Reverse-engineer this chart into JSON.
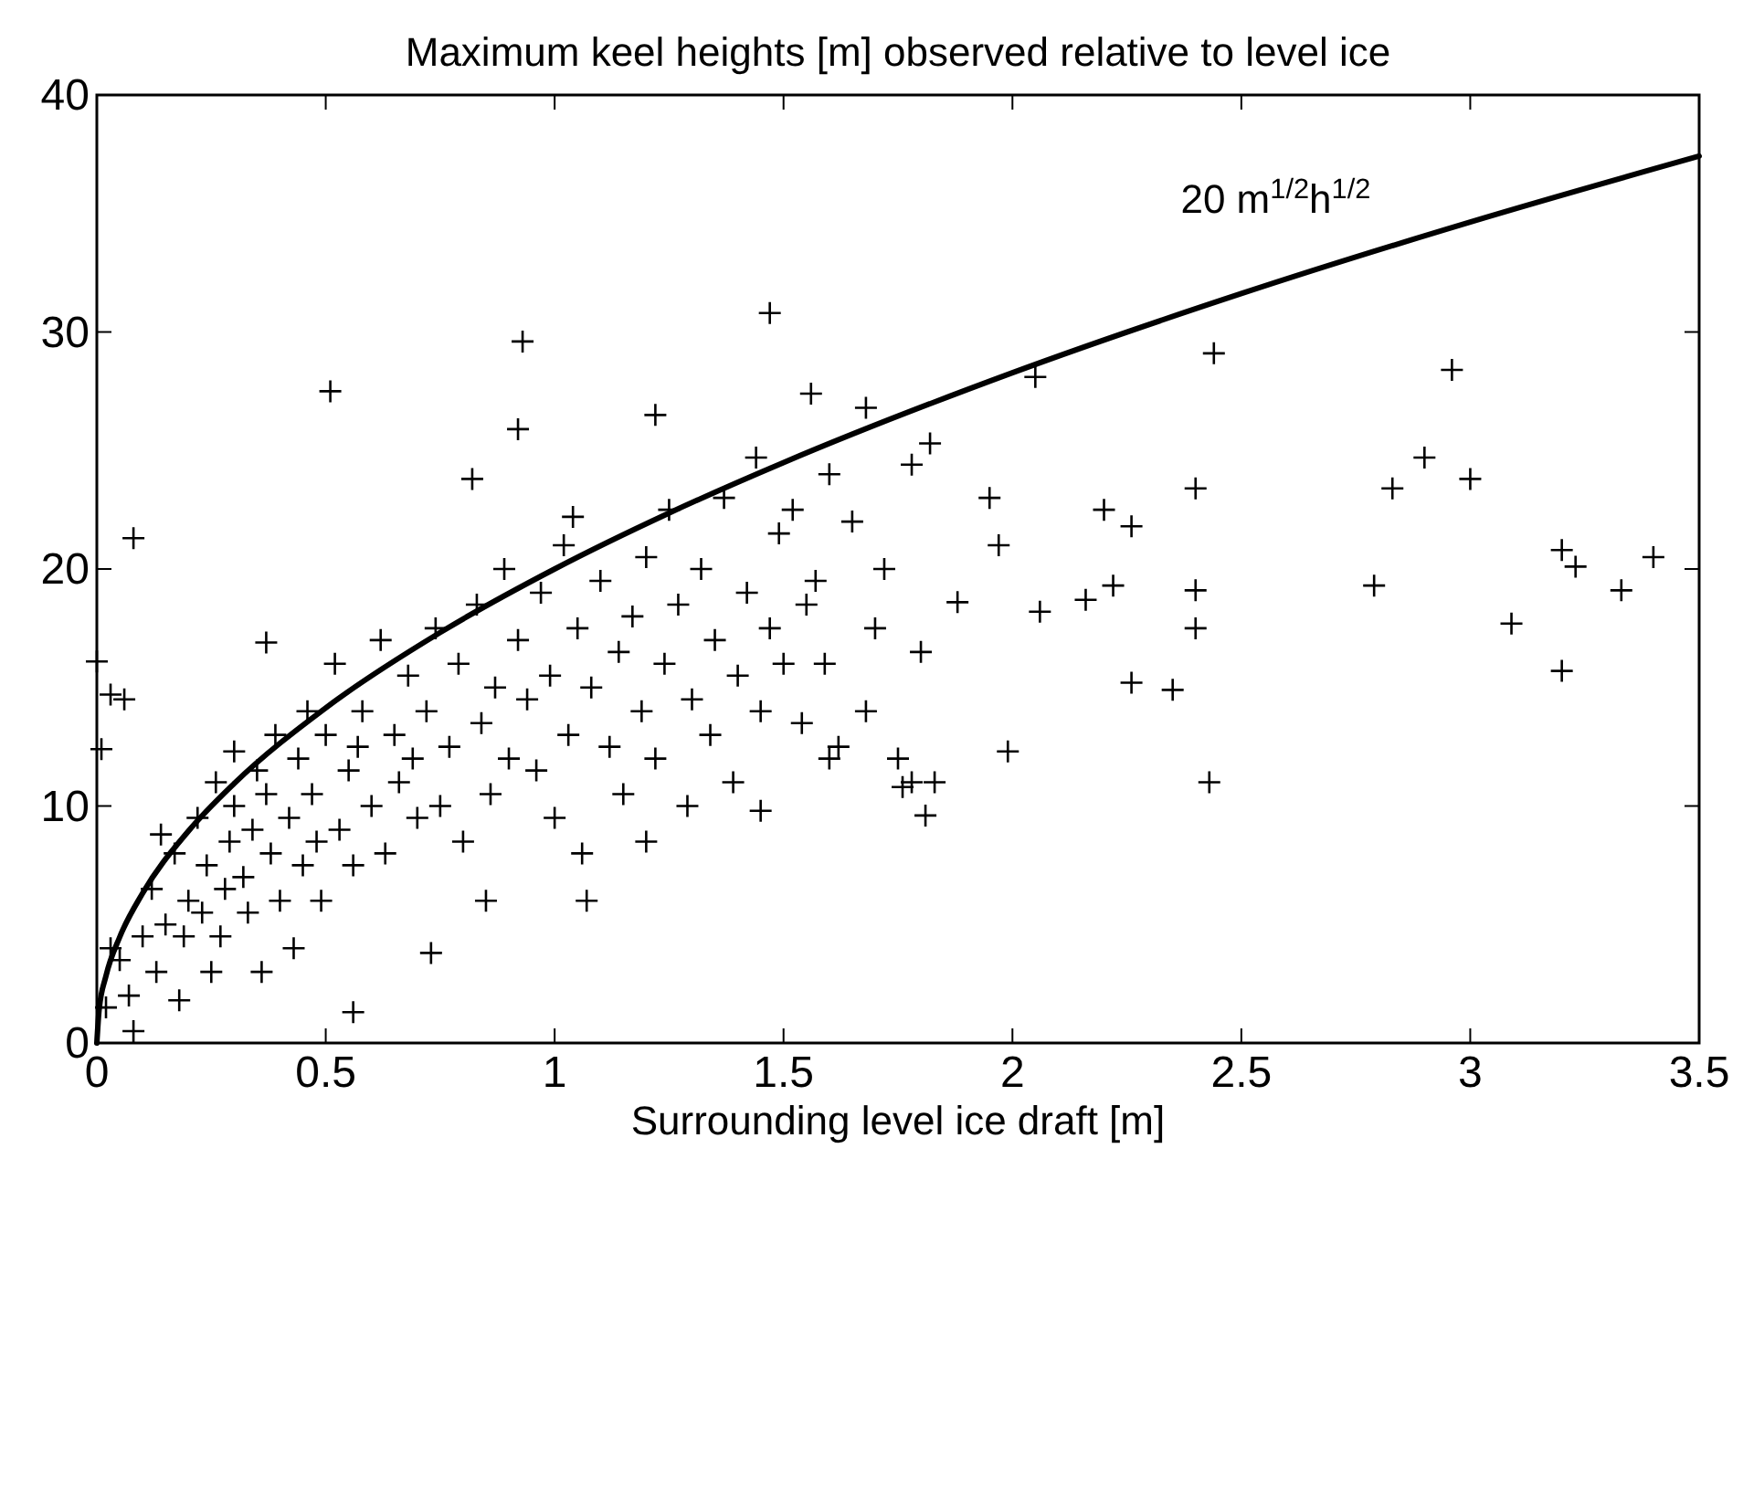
{
  "chart_data": {
    "type": "scatter",
    "title": "Maximum keel heights [m] observed relative to level ice",
    "xlabel": "Surrounding level ice draft [m]",
    "xlim": [
      0,
      3.5
    ],
    "ylim": [
      0,
      40
    ],
    "xticks": [
      0,
      0.5,
      1,
      1.5,
      2,
      2.5,
      3,
      3.5
    ],
    "yticks": [
      0,
      10,
      20,
      30,
      40
    ],
    "grid": false,
    "marker": "cross",
    "series": [
      {
        "color": "#000000",
        "x": [
          2.05,
          2.44,
          2.96,
          2.9,
          3.0,
          2.83,
          2.4,
          2.2,
          2.26,
          1.97,
          1.95,
          2.22,
          2.4,
          2.4,
          2.79,
          2.06,
          2.16,
          3.09,
          3.2,
          3.23,
          3.4,
          3.33,
          3.2,
          2.26,
          2.35,
          2.43,
          1.99,
          1.88,
          1.82,
          1.47,
          1.56,
          1.68,
          0.93,
          0.92,
          0.51,
          1.22,
          0.08,
          0.0,
          0.01,
          0.03,
          0.06,
          0.37,
          0.56,
          0.73,
          1.07,
          0.85,
          1.81,
          1.83,
          1.78,
          1.6,
          1.45,
          1.2,
          0.02,
          0.05,
          0.07,
          0.08,
          0.1,
          0.03,
          0.12,
          0.13,
          0.15,
          0.17,
          0.18,
          0.19,
          0.14,
          0.2,
          0.22,
          0.23,
          0.24,
          0.25,
          0.26,
          0.28,
          0.29,
          0.27,
          0.3,
          0.3,
          0.32,
          0.33,
          0.34,
          0.35,
          0.36,
          0.38,
          0.39,
          0.4,
          0.37,
          0.42,
          0.43,
          0.44,
          0.45,
          0.46,
          0.47,
          0.49,
          0.5,
          0.48,
          0.52,
          0.53,
          0.55,
          0.56,
          0.58,
          0.6,
          0.57,
          0.62,
          0.63,
          0.65,
          0.66,
          0.68,
          0.7,
          0.69,
          0.72,
          0.74,
          0.75,
          0.77,
          0.79,
          0.8,
          0.82,
          0.83,
          0.84,
          0.86,
          0.87,
          0.89,
          0.9,
          0.92,
          0.94,
          0.96,
          0.97,
          0.99,
          1.0,
          1.02,
          1.03,
          1.05,
          1.06,
          1.08,
          1.1,
          1.04,
          1.12,
          1.14,
          1.15,
          1.17,
          1.19,
          1.2,
          1.22,
          1.24,
          1.25,
          1.27,
          1.29,
          1.3,
          1.32,
          1.34,
          1.35,
          1.37,
          1.39,
          1.4,
          1.42,
          1.44,
          1.45,
          1.47,
          1.49,
          1.5,
          1.52,
          1.54,
          1.55,
          1.57,
          1.59,
          1.6,
          1.62,
          1.65,
          1.68,
          1.7,
          1.72,
          1.75,
          1.78,
          1.8,
          1.76
        ],
        "values": [
          28.1,
          29.1,
          28.4,
          24.7,
          23.8,
          23.4,
          23.4,
          22.5,
          21.8,
          21.0,
          23.0,
          19.3,
          19.1,
          17.5,
          19.3,
          18.2,
          18.7,
          17.7,
          20.8,
          20.1,
          20.5,
          19.1,
          15.7,
          15.2,
          14.9,
          11.0,
          12.3,
          18.6,
          25.3,
          30.8,
          27.4,
          26.8,
          29.6,
          25.9,
          27.5,
          26.5,
          21.3,
          16.1,
          12.4,
          14.7,
          14.5,
          16.9,
          1.3,
          3.8,
          6.0,
          6.0,
          9.6,
          11.0,
          11.0,
          12.0,
          9.8,
          8.5,
          1.5,
          3.5,
          2.0,
          0.5,
          4.5,
          4.0,
          6.5,
          3.0,
          5.0,
          8.0,
          1.8,
          4.5,
          8.8,
          6.0,
          9.5,
          5.5,
          7.5,
          3.0,
          11.0,
          6.5,
          8.5,
          4.5,
          10.0,
          12.3,
          7.0,
          5.5,
          9.0,
          11.5,
          3.0,
          8.0,
          13.0,
          6.0,
          10.5,
          9.5,
          4.0,
          12.0,
          7.5,
          14.0,
          10.5,
          6.0,
          13.0,
          8.5,
          16.0,
          9.0,
          11.5,
          7.5,
          14.0,
          10.0,
          12.5,
          17.0,
          8.0,
          13.0,
          11.0,
          15.5,
          9.5,
          12.0,
          14.0,
          17.5,
          10.0,
          12.5,
          16.0,
          8.5,
          23.8,
          18.5,
          13.5,
          10.5,
          15.0,
          20.0,
          12.0,
          17.0,
          14.5,
          11.5,
          19.0,
          15.5,
          9.5,
          21.0,
          13.0,
          17.5,
          8.0,
          15.0,
          19.5,
          22.2,
          12.5,
          16.5,
          10.5,
          18.0,
          14.0,
          20.5,
          12.0,
          16.0,
          22.5,
          18.5,
          10.0,
          14.5,
          20.0,
          13.0,
          17.0,
          23.0,
          11.0,
          15.5,
          19.0,
          24.7,
          14.0,
          17.5,
          21.5,
          16.0,
          22.5,
          13.5,
          18.5,
          19.5,
          16.0,
          24.0,
          12.5,
          22.0,
          14.0,
          17.5,
          20.0,
          12.0,
          24.4,
          16.5,
          10.8
        ]
      },
      {
        "type": "line",
        "name": "20 m$^{1/2}$h$^{1/2}$",
        "color": "#000000",
        "marker": "none",
        "line_style": "solid",
        "x": [
          0,
          0.005,
          0.02,
          0.05,
          0.1,
          0.2,
          0.3,
          0.5,
          0.75,
          1,
          1.25,
          1.5,
          2,
          2.5,
          3,
          3.5
        ],
        "values": [
          0,
          1.41,
          2.83,
          4.47,
          6.32,
          8.94,
          10.95,
          14.14,
          17.32,
          20,
          22.36,
          24.49,
          28.28,
          31.62,
          34.64,
          37.42
        ]
      }
    ]
  }
}
